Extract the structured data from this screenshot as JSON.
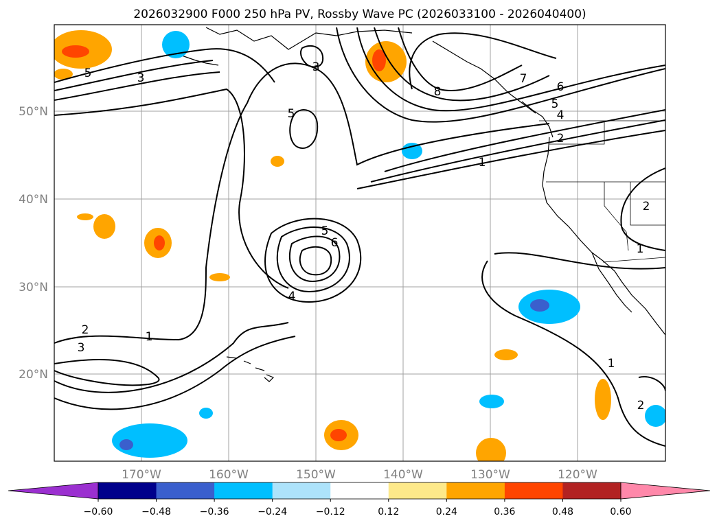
{
  "title": "2026032900 F000 250 hPa PV, Rossby Wave PC (2026033100 - 2026040400)",
  "lat_labels": [
    "50°N",
    "40°N",
    "30°N",
    "20°N"
  ],
  "lon_labels": [
    "170°W",
    "160°W",
    "150°W",
    "140°W",
    "130°W",
    "120°W"
  ],
  "contour_labels": {
    "c5_nw": "5",
    "c3_nw": "3",
    "c3_top": "3",
    "c5_mid": "5",
    "c8": "8",
    "c7": "7",
    "c6_ne": "6",
    "c5_ne": "5",
    "c4_ne": "4",
    "c2_ne": "2",
    "c1_ne": "1",
    "c5_low": "5",
    "c6_low": "6",
    "c4_low": "4",
    "c1_w": "1",
    "c2_w": "2",
    "c3_w": "3",
    "c2_e": "2",
    "c1_e": "1",
    "c1_se": "1",
    "c2_se": "2"
  },
  "colorbar": {
    "ticks": [
      "−0.60",
      "−0.48",
      "−0.36",
      "−0.24",
      "−0.12",
      "0.12",
      "0.24",
      "0.36",
      "0.48",
      "0.60"
    ],
    "colors": [
      "#9b30d0",
      "#00008b",
      "#3a5fcd",
      "#00bfff",
      "#ade3fb",
      "#ffffff",
      "#fde98a",
      "#ffa500",
      "#ff4500",
      "#b22222",
      "#ff88aa"
    ]
  }
}
